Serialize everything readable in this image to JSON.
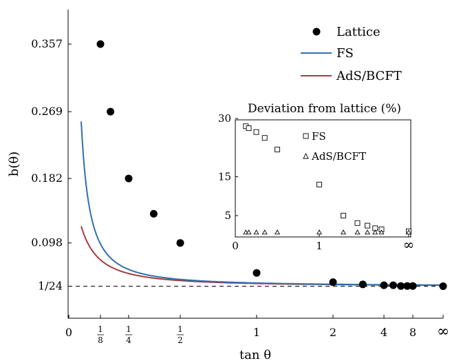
{
  "chart_data": {
    "type": "line",
    "title": "",
    "xlabel": "tan θ",
    "ylabel": "b(θ)",
    "x_scale": "compressed tan θ axis",
    "x_tick_labels": [
      "0",
      "1/8",
      "1/4",
      "1/2",
      "1",
      "2",
      "4",
      "8",
      "∞"
    ],
    "x_tick_values": [
      0,
      0.125,
      0.25,
      0.5,
      1,
      2,
      4,
      8,
      "∞"
    ],
    "y_tick_labels": [
      "1/24",
      "0.098",
      "0.182",
      "0.269",
      "0.357"
    ],
    "y_tick_values": [
      0.04167,
      0.098,
      0.182,
      0.269,
      0.357
    ],
    "ylim": [
      0,
      0.39
    ],
    "reference_line": {
      "label": "1/24",
      "value": 0.04167,
      "style": "dashed"
    },
    "legend": {
      "placement": "top-right",
      "entries": [
        "Lattice",
        "FS",
        "AdS/BCFT"
      ]
    },
    "series": [
      {
        "name": "Lattice",
        "kind": "scatter",
        "color": "#000000",
        "points": [
          [
            0.125,
            0.357
          ],
          [
            0.16,
            0.269
          ],
          [
            0.25,
            0.182
          ],
          [
            0.35,
            0.136
          ],
          [
            0.5,
            0.098
          ],
          [
            1,
            0.059
          ],
          [
            2,
            0.047
          ],
          [
            3,
            0.044
          ],
          [
            4,
            0.043
          ],
          [
            5,
            0.043
          ],
          [
            6,
            0.042
          ],
          [
            7,
            0.042
          ],
          [
            8,
            0.042
          ],
          [
            "∞",
            0.0417
          ]
        ]
      },
      {
        "name": "FS",
        "kind": "line",
        "color": "#2e6fb0"
      },
      {
        "name": "AdS/BCFT",
        "kind": "line",
        "color": "#a33a44"
      }
    ],
    "inset": {
      "title": "Deviation from lattice (%)",
      "y_tick_labels": [
        "5",
        "15",
        "30"
      ],
      "y_tick_values": [
        5,
        15,
        30
      ],
      "x_tick_labels": [
        "0",
        "1",
        "∞"
      ],
      "x_tick_values": [
        0,
        1,
        "∞"
      ],
      "legend": [
        "FS",
        "AdS/BCFT"
      ],
      "series": [
        {
          "name": "FS",
          "marker": "square",
          "points": [
            [
              0.125,
              28
            ],
            [
              0.16,
              27.5
            ],
            [
              0.25,
              26.5
            ],
            [
              0.35,
              25
            ],
            [
              0.5,
              22
            ],
            [
              1,
              13
            ],
            [
              2,
              5
            ],
            [
              3,
              3
            ],
            [
              4,
              2.3
            ],
            [
              5,
              1.6
            ],
            [
              6,
              1.3
            ],
            [
              "∞",
              0.8
            ]
          ]
        },
        {
          "name": "AdS/BCFT",
          "marker": "triangle",
          "points": [
            [
              0.125,
              0.5
            ],
            [
              0.16,
              0.5
            ],
            [
              0.25,
              0.5
            ],
            [
              0.35,
              0.5
            ],
            [
              0.5,
              0.5
            ],
            [
              1,
              0.5
            ],
            [
              2,
              0.5
            ],
            [
              3,
              0.5
            ],
            [
              4,
              0.5
            ],
            [
              5,
              0.5
            ],
            [
              6,
              0.5
            ],
            [
              "∞",
              0.5
            ]
          ]
        }
      ]
    }
  }
}
